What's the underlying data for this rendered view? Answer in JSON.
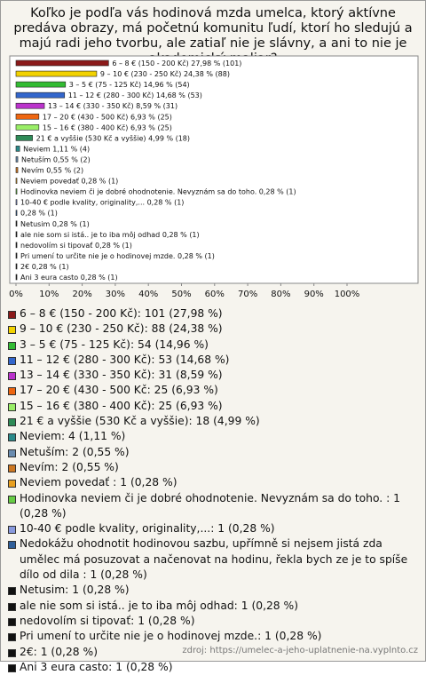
{
  "chart_data": {
    "type": "bar",
    "orientation": "horizontal",
    "title": "Koľko je podľa vás hodinová mzda umelca, ktorý aktívne predáva obrazy, má početnú komunitu ľudí, ktorí ho sledujú a majú radi jeho tvorbu, ale zatiaľ nie je slávny, a ani to nie je akademický maliar?",
    "categories": [
      "6 – 8 € (150 - 200 Kč)",
      "9 – 10 € (230 - 250 Kč)",
      "3 – 5 € (75 - 125 Kč)",
      "11 – 12 € (280 - 300 Kč)",
      "13 – 14 € (330 - 350 Kč)",
      "17 – 20 € (430 - 500 Kč)",
      "15 – 16 € (380 - 400 Kč)",
      "21 € a vyššie (530 Kč a vyššie)",
      "Neviem",
      "Netuším",
      "Nevím",
      "Neviem povedať",
      "Hodinovka neviem či je dobré ohodnotenie. Nevyznám sa do toho.",
      "10-40 € podle kvality, originality,...",
      null,
      "Netusim",
      "ale nie som si istá.. je to iba môj odhad",
      "nedovolím si tipovať",
      "Pri umení to určite nie je o hodinovej mzde.",
      "2€",
      "Ani 3 eura casto"
    ],
    "values": [
      27.98,
      24.38,
      14.96,
      14.68,
      8.59,
      6.93,
      6.93,
      4.99,
      1.11,
      0.55,
      0.55,
      0.28,
      0.28,
      0.28,
      0.28,
      0.28,
      0.28,
      0.28,
      0.28,
      0.28,
      0.28
    ],
    "value_labels": [
      "27,98 % (101)",
      "24,38 % (88)",
      "14,96 % (54)",
      "14,68 % (53)",
      "8,59 % (31)",
      "6,93 % (25)",
      "6,93 % (25)",
      "4,99 % (18)",
      "1,11 % (4)",
      "0,55 % (2)",
      "0,55 % (2)",
      "0,28 % (1)",
      "0,28 % (1)",
      "0,28 % (1)",
      "0,28 % (1)",
      "0,28 % (1)",
      "0,28 % (1)",
      "0,28 % (1)",
      "0,28 % (1)",
      "0,28 % (1)",
      "0,28 % (1)"
    ],
    "colors": [
      "#8b1a1a",
      "#f2d200",
      "#33bb33",
      "#3366cc",
      "#bb33cc",
      "#ee6611",
      "#99ee66",
      "#2e8b57",
      "#2a8a8a",
      "#6a8caf",
      "#cc7722",
      "#e8a020",
      "#66cc44",
      "#8899dd",
      "#2f5f99",
      "#111111",
      "#111111",
      "#111111",
      "#111111",
      "#111111",
      "#111111"
    ],
    "legend_labels": [
      "6 – 8 € (150 - 200 Kč): 101 (27,98 %)",
      "9 – 10 € (230 - 250 Kč): 88 (24,38 %)",
      "3 – 5 € (75 - 125 Kč): 54 (14,96 %)",
      "11 – 12 € (280 - 300 Kč): 53 (14,68 %)",
      "13 – 14 € (330 - 350 Kč): 31 (8,59 %)",
      "17 – 20 € (430 - 500 Kč: 25 (6,93 %)",
      "15 – 16 € (380 - 400 Kč): 25 (6,93 %)",
      "21 € a vyššie (530 Kč a vyššie): 18 (4,99 %)",
      "Neviem: 4 (1,11 %)",
      "Netuším: 2 (0,55 %)",
      "Nevím: 2 (0,55 %)",
      "Neviem povedať : 1 (0,28 %)",
      "Hodinovka neviem či je dobré ohodnotenie. Nevyznám sa do toho. : 1 (0,28 %)",
      "10-40 € podle kvality, originality,...: 1 (0,28 %)",
      "Nedokážu ohodnotit hodinovou sazbu, upřímně si nejsem jistá zda umělec má posuzovat a načenovat na hodinu, řekla bych ze je to spíše dílo od dila : 1 (0,28 %)",
      "Netusim: 1 (0,28 %)",
      "ale nie som si istá.. je to iba môj odhad: 1 (0,28 %)",
      "nedovolím si tipovať: 1 (0,28 %)",
      "Pri umení to určite nie je o hodinovej mzde.: 1 (0,28 %)",
      "2€: 1 (0,28 %)",
      "Ani 3 eura casto: 1 (0,28 %)"
    ],
    "xlim": [
      0,
      100
    ],
    "xticks": [
      {
        "value": 0,
        "label": "0%"
      },
      {
        "value": 10,
        "label": "10%"
      },
      {
        "value": 20,
        "label": "20%"
      },
      {
        "value": 30,
        "label": "30%"
      },
      {
        "value": 40,
        "label": "40%"
      },
      {
        "value": 50,
        "label": "50%"
      },
      {
        "value": 60,
        "label": "60%"
      },
      {
        "value": 70,
        "label": "70%"
      },
      {
        "value": 80,
        "label": "80%"
      },
      {
        "value": 90,
        "label": "90%"
      },
      {
        "value": 100,
        "label": "100%"
      }
    ],
    "source": "zdroj: https://umelec-a-jeho-uplatnenie-na.vyplnto.cz"
  }
}
